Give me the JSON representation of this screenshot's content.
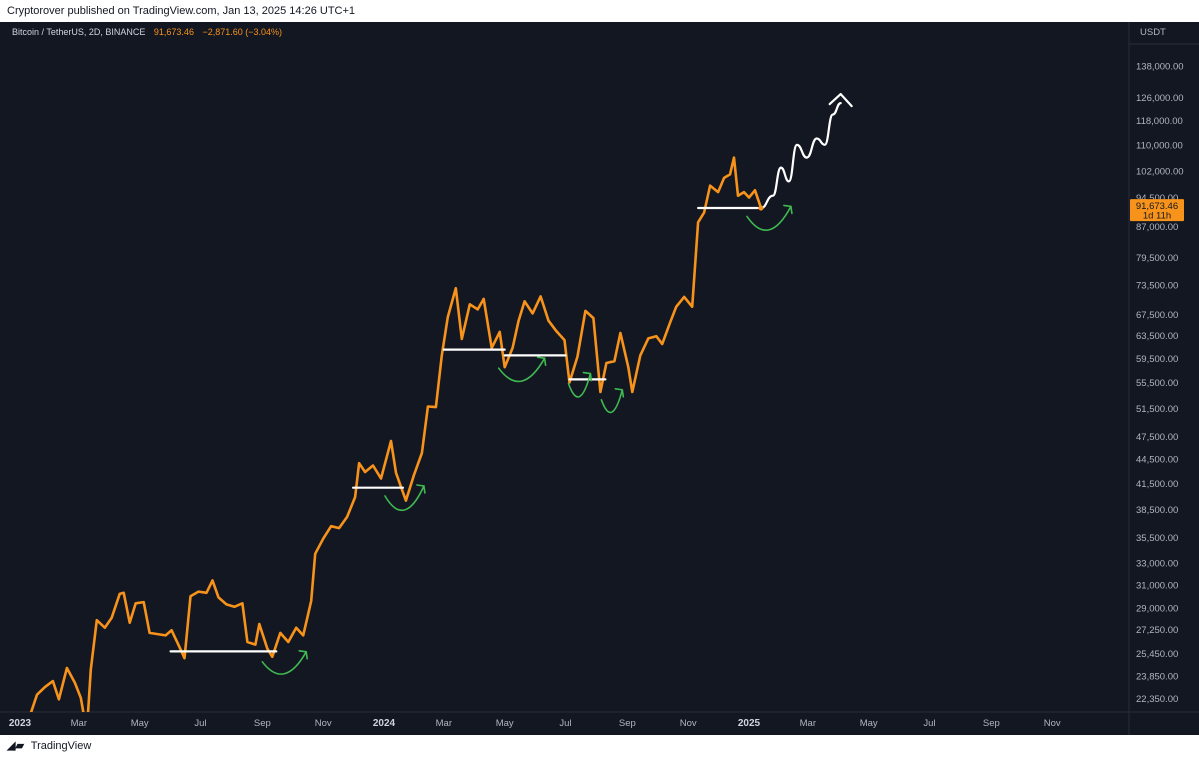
{
  "header": {
    "published_by": "Cryptorover published on TradingView.com, Jan 13, 2025 14:26 UTC+1"
  },
  "symbol": {
    "name": "Bitcoin / TetherUS, 2D, BINANCE",
    "last_price": "91,673.46",
    "change": "−2,871.60 (−3.04%)"
  },
  "footer": {
    "brand": "TradingView"
  },
  "colors": {
    "background": "#131722",
    "price_line": "#f7931a",
    "support_line": "#ffffff",
    "bounce_arrow": "#3fb950",
    "projection": "#ffffff",
    "axis_text": "#b2b5be"
  },
  "chart_data": {
    "type": "line",
    "title": "Bitcoin / TetherUS, 2D, BINANCE",
    "currency_label": "USDT",
    "price_tag": {
      "value": "91,673.46",
      "countdown": "1d 11h"
    },
    "y_scale": "log",
    "ylim": [
      21500,
      150000
    ],
    "xlim": [
      "2023-01-01",
      "2025-12-31"
    ],
    "x_tick_labels": [
      {
        "date": "2023-01-01",
        "label": "2023",
        "bold": true
      },
      {
        "date": "2023-03-01",
        "label": "Mar"
      },
      {
        "date": "2023-05-01",
        "label": "May"
      },
      {
        "date": "2023-07-01",
        "label": "Jul"
      },
      {
        "date": "2023-09-01",
        "label": "Sep"
      },
      {
        "date": "2023-11-01",
        "label": "Nov"
      },
      {
        "date": "2024-01-01",
        "label": "2024",
        "bold": true
      },
      {
        "date": "2024-03-01",
        "label": "Mar"
      },
      {
        "date": "2024-05-01",
        "label": "May"
      },
      {
        "date": "2024-07-01",
        "label": "Jul"
      },
      {
        "date": "2024-09-01",
        "label": "Sep"
      },
      {
        "date": "2024-11-01",
        "label": "Nov"
      },
      {
        "date": "2025-01-01",
        "label": "2025",
        "bold": true
      },
      {
        "date": "2025-03-01",
        "label": "Mar"
      },
      {
        "date": "2025-05-01",
        "label": "May"
      },
      {
        "date": "2025-07-01",
        "label": "Jul"
      },
      {
        "date": "2025-09-01",
        "label": "Sep"
      },
      {
        "date": "2025-11-01",
        "label": "Nov"
      }
    ],
    "y_tick_labels": [
      {
        "value": 138000,
        "label": "138,000.00"
      },
      {
        "value": 126000,
        "label": "126,000.00"
      },
      {
        "value": 118000,
        "label": "118,000.00"
      },
      {
        "value": 110000,
        "label": "110,000.00"
      },
      {
        "value": 102000,
        "label": "102,000.00"
      },
      {
        "value": 94500,
        "label": "94,500.00"
      },
      {
        "value": 87000,
        "label": "87,000.00"
      },
      {
        "value": 79500,
        "label": "79,500.00"
      },
      {
        "value": 73500,
        "label": "73,500.00"
      },
      {
        "value": 67500,
        "label": "67,500.00"
      },
      {
        "value": 63500,
        "label": "63,500.00"
      },
      {
        "value": 59500,
        "label": "59,500.00"
      },
      {
        "value": 55500,
        "label": "55,500.00"
      },
      {
        "value": 51500,
        "label": "51,500.00"
      },
      {
        "value": 47500,
        "label": "47,500.00"
      },
      {
        "value": 44500,
        "label": "44,500.00"
      },
      {
        "value": 41500,
        "label": "41,500.00"
      },
      {
        "value": 38500,
        "label": "38,500.00"
      },
      {
        "value": 35500,
        "label": "35,500.00"
      },
      {
        "value": 33000,
        "label": "33,000.00"
      },
      {
        "value": 31000,
        "label": "31,000.00"
      },
      {
        "value": 29000,
        "label": "29,000.00"
      },
      {
        "value": 27250,
        "label": "27,250.00"
      },
      {
        "value": 25450,
        "label": "25,450.00"
      },
      {
        "value": 23850,
        "label": "23,850.00"
      },
      {
        "value": 22350,
        "label": "22,350.00"
      }
    ],
    "series": [
      {
        "values": [
          [
            "2023-01-10",
            21100
          ],
          [
            "2023-01-18",
            22600
          ],
          [
            "2023-01-26",
            23100
          ],
          [
            "2023-02-03",
            23500
          ],
          [
            "2023-02-09",
            22300
          ],
          [
            "2023-02-17",
            24400
          ],
          [
            "2023-02-25",
            23400
          ],
          [
            "2023-03-03",
            22400
          ],
          [
            "2023-03-09",
            20300
          ],
          [
            "2023-03-13",
            24300
          ],
          [
            "2023-03-19",
            28000
          ],
          [
            "2023-03-27",
            27400
          ],
          [
            "2023-04-03",
            28200
          ],
          [
            "2023-04-11",
            30200
          ],
          [
            "2023-04-15",
            30300
          ],
          [
            "2023-04-21",
            27800
          ],
          [
            "2023-04-27",
            29400
          ],
          [
            "2023-05-05",
            29500
          ],
          [
            "2023-05-11",
            27000
          ],
          [
            "2023-05-19",
            26900
          ],
          [
            "2023-05-27",
            26800
          ],
          [
            "2023-06-02",
            27200
          ],
          [
            "2023-06-10",
            25900
          ],
          [
            "2023-06-15",
            25100
          ],
          [
            "2023-06-21",
            30000
          ],
          [
            "2023-06-29",
            30400
          ],
          [
            "2023-07-07",
            30300
          ],
          [
            "2023-07-13",
            31400
          ],
          [
            "2023-07-19",
            29900
          ],
          [
            "2023-07-27",
            29300
          ],
          [
            "2023-08-04",
            29100
          ],
          [
            "2023-08-12",
            29400
          ],
          [
            "2023-08-17",
            26300
          ],
          [
            "2023-08-25",
            26100
          ],
          [
            "2023-08-29",
            27700
          ],
          [
            "2023-09-06",
            25800
          ],
          [
            "2023-09-11",
            25200
          ],
          [
            "2023-09-19",
            27000
          ],
          [
            "2023-09-27",
            26300
          ],
          [
            "2023-10-05",
            27400
          ],
          [
            "2023-10-12",
            26800
          ],
          [
            "2023-10-20",
            29600
          ],
          [
            "2023-10-24",
            33900
          ],
          [
            "2023-11-01",
            35400
          ],
          [
            "2023-11-09",
            36700
          ],
          [
            "2023-11-17",
            36500
          ],
          [
            "2023-11-25",
            37700
          ],
          [
            "2023-12-03",
            39900
          ],
          [
            "2023-12-07",
            44000
          ],
          [
            "2023-12-13",
            42900
          ],
          [
            "2023-12-21",
            43700
          ],
          [
            "2023-12-29",
            42100
          ],
          [
            "2024-01-08",
            46900
          ],
          [
            "2024-01-13",
            42800
          ],
          [
            "2024-01-23",
            39500
          ],
          [
            "2024-01-31",
            42500
          ],
          [
            "2024-02-08",
            45300
          ],
          [
            "2024-02-14",
            51800
          ],
          [
            "2024-02-22",
            51700
          ],
          [
            "2024-02-28",
            60000
          ],
          [
            "2024-03-05",
            67000
          ],
          [
            "2024-03-13",
            72800
          ],
          [
            "2024-03-19",
            62900
          ],
          [
            "2024-03-27",
            69500
          ],
          [
            "2024-04-04",
            68500
          ],
          [
            "2024-04-10",
            70600
          ],
          [
            "2024-04-18",
            61300
          ],
          [
            "2024-04-26",
            64200
          ],
          [
            "2024-05-01",
            58000
          ],
          [
            "2024-05-09",
            61300
          ],
          [
            "2024-05-15",
            66300
          ],
          [
            "2024-05-21",
            70100
          ],
          [
            "2024-05-29",
            67700
          ],
          [
            "2024-06-06",
            71100
          ],
          [
            "2024-06-14",
            66300
          ],
          [
            "2024-06-22",
            64300
          ],
          [
            "2024-06-30",
            62700
          ],
          [
            "2024-07-05",
            55500
          ],
          [
            "2024-07-13",
            59800
          ],
          [
            "2024-07-21",
            68200
          ],
          [
            "2024-07-29",
            66800
          ],
          [
            "2024-08-05",
            54000
          ],
          [
            "2024-08-11",
            58700
          ],
          [
            "2024-08-19",
            59000
          ],
          [
            "2024-08-25",
            64000
          ],
          [
            "2024-09-02",
            58000
          ],
          [
            "2024-09-06",
            54000
          ],
          [
            "2024-09-14",
            60000
          ],
          [
            "2024-09-22",
            63000
          ],
          [
            "2024-09-30",
            63400
          ],
          [
            "2024-10-06",
            62000
          ],
          [
            "2024-10-14",
            66000
          ],
          [
            "2024-10-20",
            69000
          ],
          [
            "2024-10-28",
            71000
          ],
          [
            "2024-11-05",
            69000
          ],
          [
            "2024-11-11",
            88000
          ],
          [
            "2024-11-17",
            90500
          ],
          [
            "2024-11-23",
            97800
          ],
          [
            "2024-12-01",
            96000
          ],
          [
            "2024-12-07",
            100000
          ],
          [
            "2024-12-13",
            101000
          ],
          [
            "2024-12-17",
            106000
          ],
          [
            "2024-12-21",
            95000
          ],
          [
            "2024-12-27",
            96000
          ],
          [
            "2025-01-01",
            94500
          ],
          [
            "2025-01-07",
            96500
          ],
          [
            "2025-01-13",
            91673
          ]
        ]
      }
    ],
    "support_levels": [
      {
        "from": "2023-06-01",
        "to": "2023-09-15",
        "value": 25600
      },
      {
        "from": "2023-12-01",
        "to": "2024-01-20",
        "value": 41000
      },
      {
        "from": "2024-03-01",
        "to": "2024-05-01",
        "value": 61000
      },
      {
        "from": "2024-05-01",
        "to": "2024-07-01",
        "value": 60000
      },
      {
        "from": "2024-07-05",
        "to": "2024-08-10",
        "value": 56000
      },
      {
        "from": "2024-11-11",
        "to": "2025-01-10",
        "value": 91700
      }
    ],
    "bounce_arrows": [
      {
        "from": "2023-09-01",
        "to": "2023-10-15",
        "low": 23800,
        "tip": 24700
      },
      {
        "from": "2024-01-02",
        "to": "2024-02-10",
        "low": 37900,
        "tip": 39800
      },
      {
        "from": "2024-04-25",
        "to": "2024-06-10",
        "low": 55100,
        "tip": 57500
      },
      {
        "from": "2024-07-04",
        "to": "2024-07-26",
        "low": 52700,
        "tip": 55000
      },
      {
        "from": "2024-08-06",
        "to": "2024-08-27",
        "low": 50500,
        "tip": 52500
      },
      {
        "from": "2024-12-30",
        "to": "2025-02-12",
        "low": 85000,
        "tip": 89000
      }
    ],
    "projection": [
      [
        "2025-01-13",
        91673
      ],
      [
        "2025-01-25",
        95000
      ],
      [
        "2025-02-02",
        103000
      ],
      [
        "2025-02-10",
        99000
      ],
      [
        "2025-02-18",
        110000
      ],
      [
        "2025-02-28",
        106000
      ],
      [
        "2025-03-10",
        112000
      ],
      [
        "2025-03-18",
        110000
      ],
      [
        "2025-03-26",
        120000
      ],
      [
        "2025-04-03",
        124000
      ]
    ]
  }
}
